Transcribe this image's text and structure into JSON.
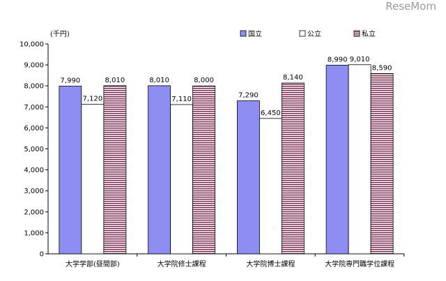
{
  "watermark": "ReseMom",
  "chart_data": {
    "type": "bar",
    "unit_label": "(千円)",
    "categories": [
      "大学学部(昼間部)",
      "大学院修士課程",
      "大学院博士課程",
      "大学院専門職学位課程"
    ],
    "series": [
      {
        "name": "国立",
        "values": [
          7990,
          8010,
          7290,
          8990
        ],
        "color": "#8e8ef2",
        "pattern": "solid"
      },
      {
        "name": "公立",
        "values": [
          7120,
          7110,
          6450,
          9010
        ],
        "color": "#ffffff",
        "pattern": "white"
      },
      {
        "name": "私立",
        "values": [
          8010,
          8000,
          8140,
          8590
        ],
        "color": "#7a2a52",
        "pattern": "horizontal-stripes"
      }
    ],
    "data_labels": [
      [
        "7,990",
        "8,010",
        "7,290",
        "8,990"
      ],
      [
        "7,120",
        "7,110",
        "6,450",
        "9,010"
      ],
      [
        "8,010",
        "8,000",
        "8,140",
        "8,590"
      ]
    ],
    "y_ticks": [
      "0",
      "1,000",
      "2,000",
      "3,000",
      "4,000",
      "5,000",
      "6,000",
      "7,000",
      "8,000",
      "9,000",
      "10,000"
    ],
    "ylim": [
      0,
      10000
    ],
    "grid": false,
    "legend_position": "top-right"
  }
}
